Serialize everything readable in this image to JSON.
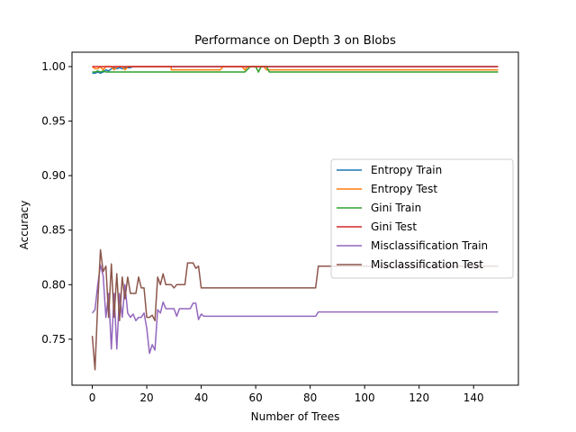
{
  "chart_data": {
    "type": "line",
    "title": "Performance on Depth 3 on Blobs",
    "xlabel": "Number of Trees",
    "ylabel": "Accuracy",
    "xlim": [
      -7.45,
      156.45
    ],
    "ylim": [
      0.7078,
      1.0132
    ],
    "xticks": [
      0,
      20,
      40,
      60,
      80,
      100,
      120,
      140
    ],
    "yticks": [
      0.75,
      0.8,
      0.85,
      0.9,
      0.95,
      1.0
    ],
    "ytick_labels": [
      "0.75",
      "0.80",
      "0.85",
      "0.90",
      "0.95",
      "1.00"
    ],
    "grid": false,
    "legend_position": "center-right",
    "series": [
      {
        "name": "Entropy Train",
        "color": "#1f77b4",
        "points": [
          [
            0,
            0.994
          ],
          [
            1,
            0.994
          ],
          [
            2,
            0.995
          ],
          [
            3,
            0.994
          ],
          [
            4,
            0.995
          ],
          [
            5,
            0.997
          ],
          [
            6,
            0.996
          ],
          [
            7,
            0.998
          ],
          [
            8,
            0.999
          ],
          [
            9,
            0.998
          ],
          [
            10,
            0.999
          ],
          [
            11,
            0.998
          ],
          [
            12,
            0.999
          ],
          [
            13,
            0.999
          ],
          [
            14,
            0.999
          ],
          [
            15,
            1.0
          ],
          [
            149,
            1.0
          ]
        ]
      },
      {
        "name": "Entropy Test",
        "color": "#ff7f0e",
        "points": [
          [
            0,
            1.0
          ],
          [
            1,
            0.998
          ],
          [
            2,
            0.998
          ],
          [
            3,
            1.0
          ],
          [
            4,
            0.997
          ],
          [
            5,
            1.0
          ],
          [
            6,
            1.0
          ],
          [
            7,
            1.0
          ],
          [
            8,
            0.997
          ],
          [
            9,
            1.0
          ],
          [
            10,
            1.0
          ],
          [
            11,
            1.0
          ],
          [
            12,
            0.997
          ],
          [
            13,
            1.0
          ],
          [
            29,
            1.0
          ],
          [
            29,
            0.997
          ],
          [
            47,
            0.997
          ],
          [
            48,
            1.0
          ],
          [
            55,
            1.0
          ],
          [
            56,
            0.997
          ],
          [
            57,
            1.0
          ],
          [
            63,
            1.0
          ],
          [
            64,
            0.997
          ],
          [
            149,
            0.997
          ]
        ]
      },
      {
        "name": "Gini Train",
        "color": "#2ca02c",
        "points": [
          [
            0,
            0.995
          ],
          [
            1,
            0.995
          ],
          [
            2,
            0.996
          ],
          [
            3,
            0.995
          ],
          [
            4,
            0.996
          ],
          [
            5,
            0.995
          ],
          [
            56,
            0.995
          ],
          [
            58,
            1.0
          ],
          [
            60,
            1.0
          ],
          [
            61,
            0.995
          ],
          [
            62,
            1.0
          ],
          [
            64,
            1.0
          ],
          [
            65,
            0.995
          ],
          [
            149,
            0.995
          ]
        ]
      },
      {
        "name": "Gini Test",
        "color": "#d62728",
        "points": [
          [
            0,
            1.0
          ],
          [
            149,
            1.0
          ]
        ]
      },
      {
        "name": "Misclassification Train",
        "color": "#9467bd",
        "points": [
          [
            0,
            0.774
          ],
          [
            1,
            0.777
          ],
          [
            2,
            0.8
          ],
          [
            3,
            0.818
          ],
          [
            4,
            0.808
          ],
          [
            5,
            0.77
          ],
          [
            6,
            0.792
          ],
          [
            7,
            0.741
          ],
          [
            8,
            0.792
          ],
          [
            9,
            0.741
          ],
          [
            10,
            0.792
          ],
          [
            11,
            0.77
          ],
          [
            12,
            0.8
          ],
          [
            13,
            0.774
          ],
          [
            14,
            0.77
          ],
          [
            15,
            0.773
          ],
          [
            16,
            0.767
          ],
          [
            17,
            0.77
          ],
          [
            18,
            0.77
          ],
          [
            19,
            0.774
          ],
          [
            20,
            0.76
          ],
          [
            21,
            0.737
          ],
          [
            22,
            0.745
          ],
          [
            23,
            0.74
          ],
          [
            24,
            0.777
          ],
          [
            25,
            0.774
          ],
          [
            26,
            0.784
          ],
          [
            27,
            0.778
          ],
          [
            28,
            0.778
          ],
          [
            30,
            0.778
          ],
          [
            31,
            0.771
          ],
          [
            32,
            0.778
          ],
          [
            36,
            0.778
          ],
          [
            37,
            0.783
          ],
          [
            38,
            0.783
          ],
          [
            39,
            0.768
          ],
          [
            40,
            0.773
          ],
          [
            41,
            0.771
          ],
          [
            82,
            0.771
          ],
          [
            83,
            0.775
          ],
          [
            149,
            0.775
          ]
        ]
      },
      {
        "name": "Misclassification Test",
        "color": "#8c564b",
        "points": [
          [
            0,
            0.753
          ],
          [
            1,
            0.722
          ],
          [
            2,
            0.783
          ],
          [
            3,
            0.832
          ],
          [
            4,
            0.812
          ],
          [
            5,
            0.817
          ],
          [
            6,
            0.77
          ],
          [
            7,
            0.819
          ],
          [
            8,
            0.77
          ],
          [
            9,
            0.81
          ],
          [
            10,
            0.767
          ],
          [
            11,
            0.807
          ],
          [
            12,
            0.787
          ],
          [
            13,
            0.807
          ],
          [
            14,
            0.792
          ],
          [
            15,
            0.792
          ],
          [
            16,
            0.792
          ],
          [
            17,
            0.807
          ],
          [
            18,
            0.797
          ],
          [
            19,
            0.797
          ],
          [
            20,
            0.77
          ],
          [
            21,
            0.77
          ],
          [
            22,
            0.772
          ],
          [
            23,
            0.767
          ],
          [
            24,
            0.807
          ],
          [
            25,
            0.8
          ],
          [
            26,
            0.81
          ],
          [
            27,
            0.8
          ],
          [
            28,
            0.8
          ],
          [
            29,
            0.8
          ],
          [
            30,
            0.797
          ],
          [
            31,
            0.8
          ],
          [
            34,
            0.8
          ],
          [
            35,
            0.82
          ],
          [
            37,
            0.82
          ],
          [
            38,
            0.815
          ],
          [
            39,
            0.817
          ],
          [
            40,
            0.797
          ],
          [
            82,
            0.797
          ],
          [
            83,
            0.817
          ],
          [
            149,
            0.817
          ]
        ]
      }
    ]
  }
}
